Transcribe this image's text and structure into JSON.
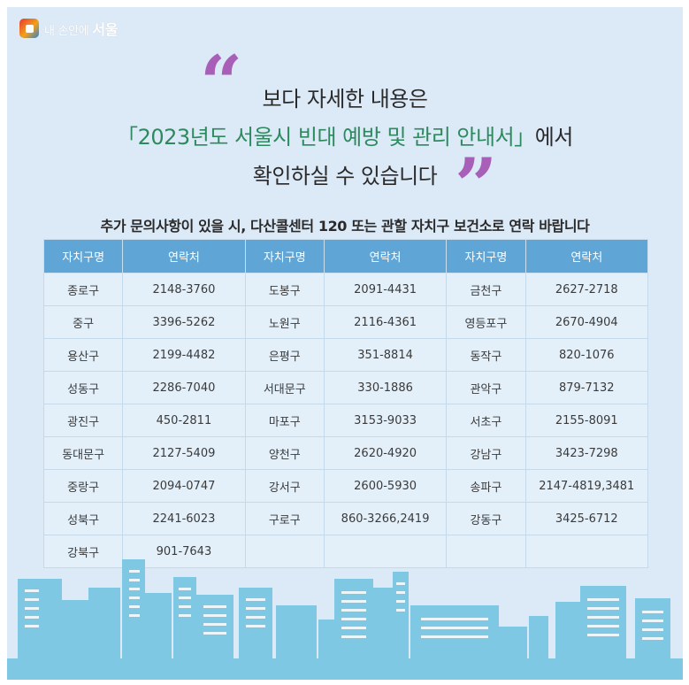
{
  "brand": {
    "prefix": "내 손안에",
    "name": "서울"
  },
  "headline": {
    "quote_open": "“",
    "line1": "보다 자세한 내용은",
    "line2_highlight": "「2023년도 서울시 빈대 예방 및 관리 안내서」",
    "line2_rest": "에서",
    "line3": "확인하실 수 있습니다",
    "quote_close": "”"
  },
  "subtitle": "추가 문의사항이 있을 시, 다산콜센터 120 또는 관할 자치구 보건소로 연락 바랍니다",
  "table": {
    "headers": [
      "자치구명",
      "연락처",
      "자치구명",
      "연락처",
      "자치구명",
      "연락처"
    ],
    "rows": [
      [
        "종로구",
        "2148-3760",
        "도봉구",
        "2091-4431",
        "금천구",
        "2627-2718"
      ],
      [
        "중구",
        "3396-5262",
        "노원구",
        "2116-4361",
        "영등포구",
        "2670-4904"
      ],
      [
        "용산구",
        "2199-4482",
        "은평구",
        "351-8814",
        "동작구",
        "820-1076"
      ],
      [
        "성동구",
        "2286-7040",
        "서대문구",
        "330-1886",
        "관악구",
        "879-7132"
      ],
      [
        "광진구",
        "450-2811",
        "마포구",
        "3153-9033",
        "서초구",
        "2155-8091"
      ],
      [
        "동대문구",
        "2127-5409",
        "양천구",
        "2620-4920",
        "강남구",
        "3423-7298"
      ],
      [
        "중랑구",
        "2094-0747",
        "강서구",
        "2600-5930",
        "송파구",
        "2147-4819,3481"
      ],
      [
        "성북구",
        "2241-6023",
        "구로구",
        "860-3266,2419",
        "강동구",
        "3425-6712"
      ],
      [
        "강북구",
        "901-7643",
        "",
        "",
        "",
        ""
      ]
    ]
  },
  "colors": {
    "background": "#dce9f7",
    "header": "#5fa6d7",
    "cell": "#e3f0fa",
    "highlight": "#2d8a5e",
    "quote": "#a85fb8",
    "skyline": "#7fc8e4"
  },
  "icons": {
    "brand": "seoul-logo-icon",
    "skyline": "city-skyline-illustration"
  }
}
